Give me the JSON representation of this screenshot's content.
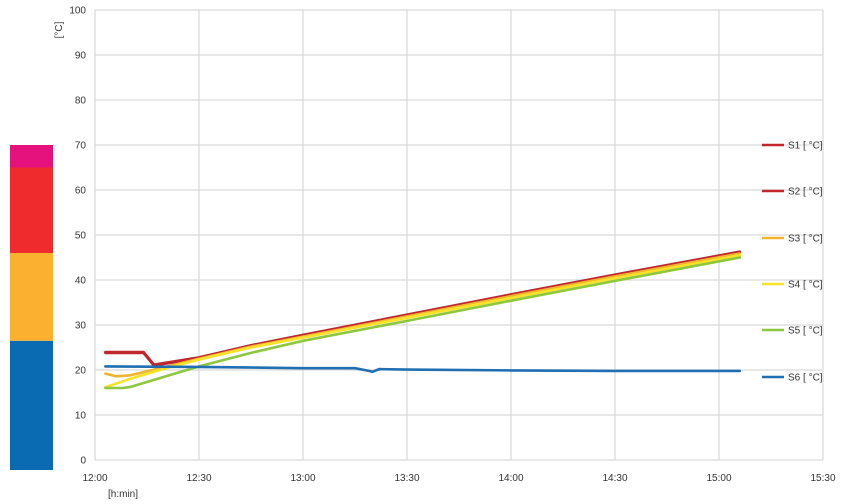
{
  "chart_data": {
    "type": "line",
    "title": "",
    "ylabel": "[°C]",
    "xlabel": "[h:min]",
    "ylim": [
      0,
      100
    ],
    "xlim": [
      "12:00",
      "15:30"
    ],
    "y_ticks": [
      "0",
      "10",
      "20",
      "30",
      "40",
      "50",
      "60",
      "70",
      "80",
      "90",
      "100"
    ],
    "x_ticks": [
      "12:00",
      "12:30",
      "13:00",
      "13:30",
      "14:00",
      "14:30",
      "15:00",
      "15:30"
    ],
    "grid": true,
    "legend_position": "right",
    "color_scale": [
      {
        "from": 0,
        "to": 26.5,
        "color": "#0a6ab2"
      },
      {
        "from": 26.5,
        "to": 46,
        "color": "#fbb12f"
      },
      {
        "from": 46,
        "to": 65,
        "color": "#ef2b2d"
      },
      {
        "from": 65,
        "to": 70,
        "color": "#e5127d"
      }
    ],
    "series": [
      {
        "name": "S1 [ °C]",
        "color": "#c0272d",
        "x": [
          "12:03",
          "12:10",
          "12:14",
          "12:17",
          "12:30",
          "12:45",
          "13:00",
          "13:30",
          "14:00",
          "14:30",
          "15:06"
        ],
        "y": [
          24,
          24,
          24,
          21.2,
          22.8,
          25.5,
          27.8,
          32.3,
          36.8,
          41.2,
          46.3
        ]
      },
      {
        "name": "S2 [ °C]",
        "color": "#c0272d",
        "x": [
          "12:03",
          "12:10",
          "12:14",
          "12:17",
          "12:30",
          "12:45",
          "13:00",
          "13:30",
          "14:00",
          "14:30",
          "15:06"
        ],
        "y": [
          23.8,
          23.8,
          23.8,
          21,
          22.6,
          25.3,
          27.6,
          32.1,
          36.6,
          41,
          46.1
        ]
      },
      {
        "name": "S3 [ °C]",
        "color": "#f1b32c",
        "x": [
          "12:03",
          "12:06",
          "12:10",
          "12:20",
          "12:30",
          "12:45",
          "13:00",
          "13:30",
          "14:00",
          "14:30",
          "15:06"
        ],
        "y": [
          19.2,
          18.6,
          18.8,
          20.6,
          22.5,
          25.2,
          27.4,
          31.9,
          36.4,
          40.8,
          45.9
        ]
      },
      {
        "name": "S4 [ °C]",
        "color": "#f5e32a",
        "x": [
          "12:03",
          "12:10",
          "12:20",
          "12:30",
          "12:45",
          "13:00",
          "13:30",
          "14:00",
          "14:30",
          "15:06"
        ],
        "y": [
          16.2,
          18,
          20.3,
          22.3,
          25,
          27.2,
          31.6,
          36,
          40.4,
          45.5
        ]
      },
      {
        "name": "S5 [ °C]",
        "color": "#8dc63f",
        "x": [
          "12:03",
          "12:08",
          "12:10",
          "12:20",
          "12:30",
          "12:45",
          "13:00",
          "13:30",
          "14:00",
          "14:30",
          "15:06"
        ],
        "y": [
          16,
          16,
          16.2,
          18.5,
          20.8,
          23.8,
          26.5,
          30.9,
          35.4,
          39.8,
          45
        ]
      },
      {
        "name": "S6 [ °C]",
        "color": "#1f6fb2",
        "x": [
          "12:03",
          "12:30",
          "13:00",
          "13:15",
          "13:19",
          "13:20",
          "13:22",
          "13:30",
          "14:00",
          "14:30",
          "15:06"
        ],
        "y": [
          20.8,
          20.7,
          20.4,
          20.4,
          19.8,
          19.6,
          20.2,
          20.1,
          19.9,
          19.8,
          19.8
        ]
      }
    ]
  }
}
